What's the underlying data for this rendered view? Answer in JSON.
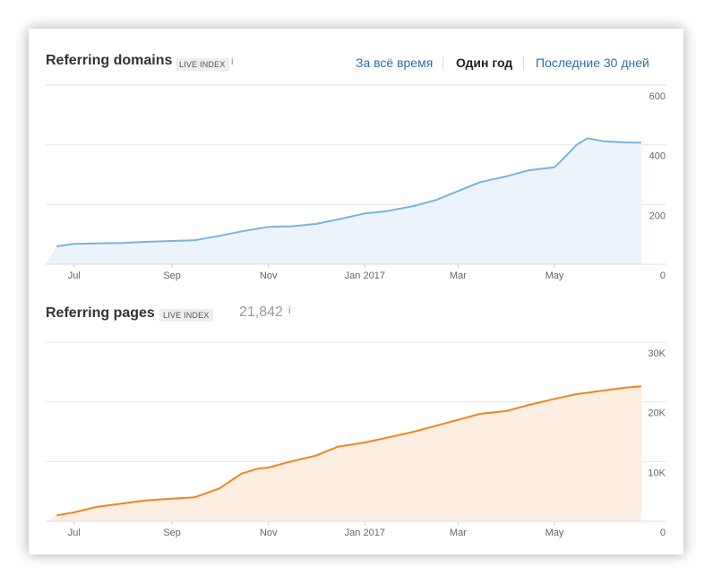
{
  "domains_panel": {
    "title": "Referring domains",
    "badge": "LIVE INDEX",
    "info": "i"
  },
  "range_tabs": [
    {
      "label": "За всё время",
      "active": false
    },
    {
      "label": "Один год",
      "active": true
    },
    {
      "label": "Последние 30 дней",
      "active": false
    }
  ],
  "pages_panel": {
    "title": "Referring pages",
    "badge": "LIVE INDEX",
    "count": "21,842",
    "info": "i"
  },
  "colors": {
    "domains_line": "#7ab3dc",
    "domains_fill": "#ebf4fb",
    "pages_line": "#ef8520",
    "pages_fill": "#fdeee2"
  },
  "chart_data": [
    {
      "type": "area",
      "title": "Referring domains",
      "x_tick_labels": [
        "Jul",
        "Sep",
        "Nov",
        "Jan 2017",
        "Mar",
        "May"
      ],
      "y_tick_labels": [
        "600",
        "400",
        "200",
        "0"
      ],
      "ylim": [
        0,
        600
      ],
      "x": [
        "2016-06-20",
        "2016-07-01",
        "2016-07-15",
        "2016-08-01",
        "2016-08-15",
        "2016-09-01",
        "2016-09-15",
        "2016-10-01",
        "2016-10-15",
        "2016-11-01",
        "2016-11-15",
        "2016-12-01",
        "2016-12-15",
        "2017-01-01",
        "2017-01-15",
        "2017-02-01",
        "2017-02-15",
        "2017-03-01",
        "2017-03-15",
        "2017-04-01",
        "2017-04-15",
        "2017-05-01",
        "2017-05-05",
        "2017-05-15",
        "2017-05-22",
        "2017-06-01",
        "2017-06-15",
        "2017-06-25"
      ],
      "values": [
        60,
        68,
        70,
        71,
        75,
        78,
        80,
        95,
        110,
        125,
        127,
        135,
        150,
        170,
        178,
        195,
        215,
        245,
        275,
        295,
        315,
        325,
        345,
        400,
        422,
        412,
        408,
        407
      ],
      "grid": true
    },
    {
      "type": "area",
      "title": "Referring pages",
      "x_tick_labels": [
        "Jul",
        "Sep",
        "Nov",
        "Jan 2017",
        "Mar",
        "May"
      ],
      "y_tick_labels": [
        "30K",
        "20K",
        "10K",
        "0"
      ],
      "ylim": [
        0,
        30000
      ],
      "x": [
        "2016-06-20",
        "2016-07-01",
        "2016-07-15",
        "2016-08-01",
        "2016-08-15",
        "2016-09-01",
        "2016-09-15",
        "2016-10-01",
        "2016-10-15",
        "2016-10-25",
        "2016-11-01",
        "2016-11-15",
        "2016-12-01",
        "2016-12-15",
        "2017-01-01",
        "2017-01-15",
        "2017-02-01",
        "2017-02-15",
        "2017-03-01",
        "2017-03-15",
        "2017-04-01",
        "2017-04-15",
        "2017-05-01",
        "2017-05-15",
        "2017-06-01",
        "2017-06-15",
        "2017-06-25"
      ],
      "values": [
        1000,
        1500,
        2400,
        3000,
        3500,
        3800,
        4000,
        5500,
        8000,
        8800,
        9000,
        10000,
        11000,
        12500,
        13200,
        14000,
        15000,
        16000,
        17000,
        18000,
        18500,
        19500,
        20500,
        21300,
        21900,
        22400,
        22600
      ],
      "grid": true
    }
  ]
}
